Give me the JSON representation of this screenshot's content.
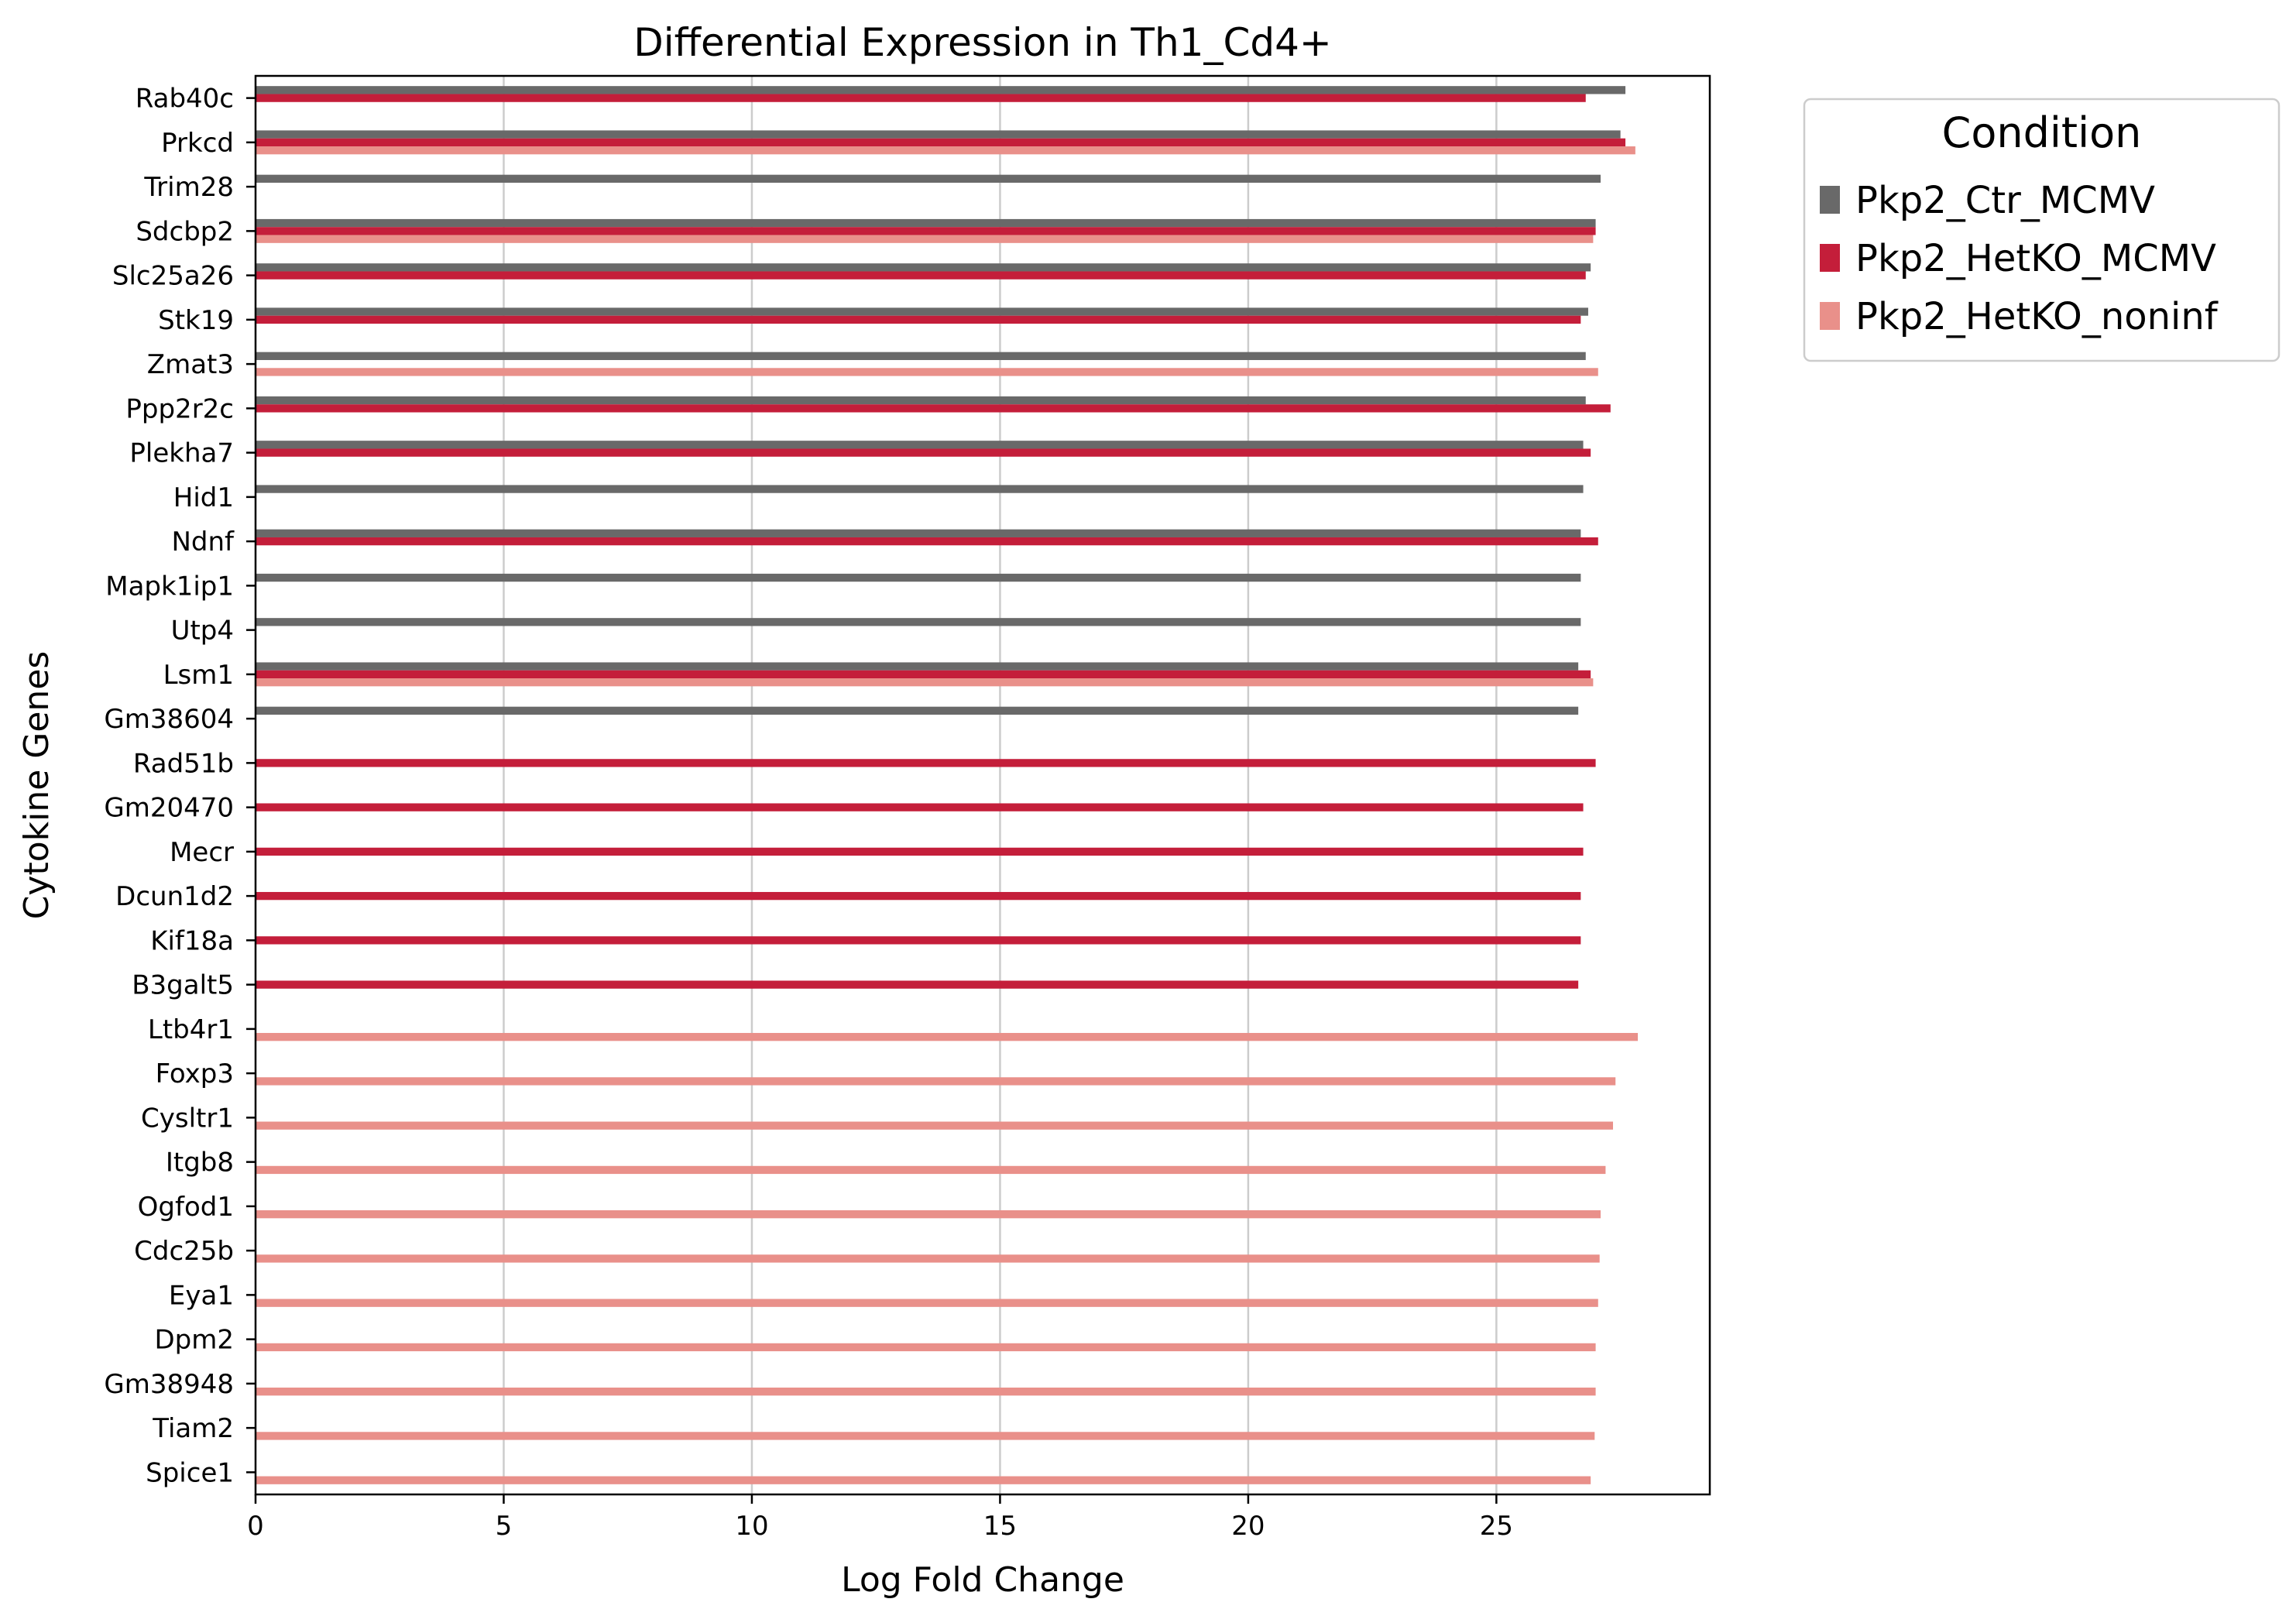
{
  "chart_data": {
    "type": "bar",
    "orientation": "horizontal",
    "title": "Differential Expression in Th1_Cd4+",
    "xlabel": "Log Fold Change",
    "ylabel": "Cytokine Genes",
    "xlim": [
      0,
      29.3
    ],
    "xticks": [
      0,
      5,
      10,
      15,
      20,
      25
    ],
    "grid": "vertical",
    "legend": {
      "title": "Condition",
      "placement": "outside-top-right"
    },
    "categories": [
      "Rab40c",
      "Prkcd",
      "Trim28",
      "Sdcbp2",
      "Slc25a26",
      "Stk19",
      "Zmat3",
      "Ppp2r2c",
      "Plekha7",
      "Hid1",
      "Ndnf",
      "Mapk1ip1",
      "Utp4",
      "Lsm1",
      "Gm38604",
      "Rad51b",
      "Gm20470",
      "Mecr",
      "Dcun1d2",
      "Kif18a",
      "B3galt5",
      "Ltb4r1",
      "Foxp3",
      "Cysltr1",
      "Itgb8",
      "Ogfod1",
      "Cdc25b",
      "Eya1",
      "Dpm2",
      "Gm38948",
      "Tiam2",
      "Spice1"
    ],
    "series": [
      {
        "name": "Pkp2_Ctr_MCMV",
        "color": "#696969",
        "values": [
          27.6,
          27.5,
          27.1,
          27.0,
          26.9,
          26.85,
          26.8,
          26.8,
          26.75,
          26.75,
          26.7,
          26.7,
          26.7,
          26.65,
          26.65,
          null,
          null,
          null,
          null,
          null,
          null,
          null,
          null,
          null,
          null,
          null,
          null,
          null,
          null,
          null,
          null,
          null
        ]
      },
      {
        "name": "Pkp2_HetKO_MCMV",
        "color": "#C41E3A",
        "values": [
          26.8,
          27.6,
          null,
          27.0,
          26.8,
          26.7,
          null,
          27.3,
          26.9,
          null,
          27.05,
          null,
          null,
          26.9,
          null,
          27.0,
          26.75,
          26.75,
          26.7,
          26.7,
          26.65,
          null,
          null,
          null,
          null,
          null,
          null,
          null,
          null,
          null,
          null,
          null
        ]
      },
      {
        "name": "Pkp2_HetKO_noninf",
        "color": "#E9908A",
        "values": [
          null,
          27.8,
          null,
          26.95,
          null,
          null,
          27.05,
          null,
          null,
          null,
          null,
          null,
          null,
          26.95,
          null,
          null,
          null,
          null,
          null,
          null,
          null,
          27.85,
          27.4,
          27.35,
          27.2,
          27.1,
          27.08,
          27.05,
          27.0,
          27.0,
          26.98,
          26.9
        ]
      }
    ]
  }
}
